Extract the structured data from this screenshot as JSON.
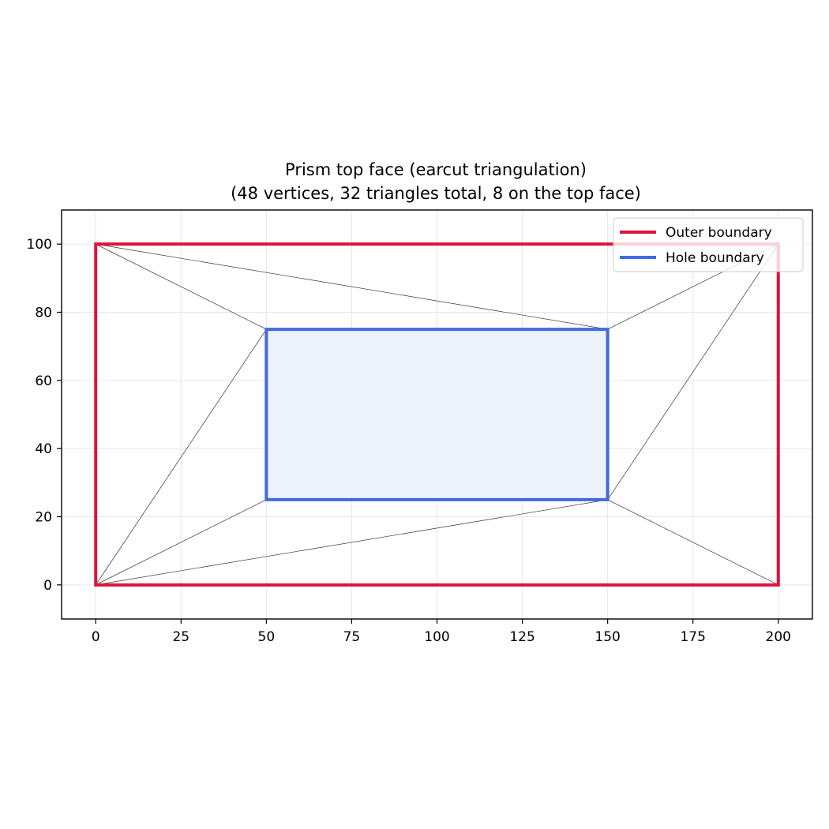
{
  "chart_data": {
    "type": "line",
    "title_line1": "Prism top face (earcut triangulation)",
    "title_line2": "(48 vertices, 32 triangles total, 8 on the top face)",
    "xlabel": "",
    "ylabel": "",
    "xlim": [
      -10,
      210
    ],
    "ylim": [
      -10,
      110
    ],
    "xticks": [
      0,
      25,
      50,
      75,
      100,
      125,
      150,
      175,
      200
    ],
    "yticks": [
      0,
      20,
      40,
      60,
      80,
      100
    ],
    "grid": true,
    "legend_position": "top-right",
    "series": [
      {
        "name": "Outer boundary",
        "color": "#dc143c",
        "points": [
          [
            0,
            0
          ],
          [
            200,
            0
          ],
          [
            200,
            100
          ],
          [
            0,
            100
          ],
          [
            0,
            0
          ]
        ]
      },
      {
        "name": "Hole boundary",
        "color": "#4169e1",
        "fill": "#eef2fb",
        "points": [
          [
            50,
            25
          ],
          [
            150,
            25
          ],
          [
            150,
            75
          ],
          [
            50,
            75
          ],
          [
            50,
            25
          ]
        ]
      }
    ],
    "triangulation_edges": [
      [
        [
          0,
          100
        ],
        [
          50,
          75
        ]
      ],
      [
        [
          0,
          100
        ],
        [
          150,
          75
        ]
      ],
      [
        [
          150,
          75
        ],
        [
          200,
          100
        ]
      ],
      [
        [
          200,
          100
        ],
        [
          150,
          25
        ]
      ],
      [
        [
          150,
          25
        ],
        [
          200,
          0
        ]
      ],
      [
        [
          0,
          0
        ],
        [
          150,
          25
        ]
      ],
      [
        [
          0,
          0
        ],
        [
          50,
          25
        ]
      ],
      [
        [
          0,
          0
        ],
        [
          50,
          75
        ]
      ]
    ],
    "edge_color": "#333333"
  }
}
